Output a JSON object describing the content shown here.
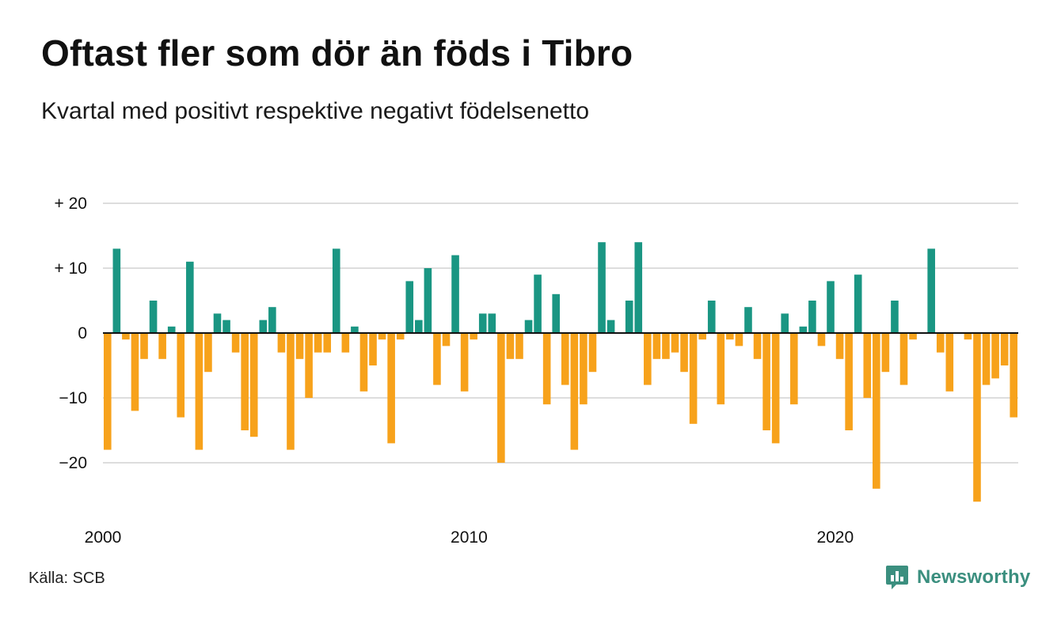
{
  "header": {
    "title": "Oftast fler som dör än föds i Tibro",
    "subtitle": "Kvartal med positivt respektive negativt födelsenetto"
  },
  "footer": {
    "source": "Källa: SCB",
    "brand": "Newsworthy",
    "brand_logo_icon": "newsworthy-logo-icon"
  },
  "colors": {
    "positive": "#1a9683",
    "negative": "#f7a21b",
    "grid": "#dddddd",
    "zero_line": "#111111",
    "brand": "#3b8f7f"
  },
  "chart_data": {
    "type": "bar",
    "title": "Oftast fler som dör än föds i Tibro",
    "subtitle": "Kvartal med positivt respektive negativt födelsenetto",
    "x_start": "2000 Q1",
    "x_ticks": [
      "2000",
      "2010",
      "2020"
    ],
    "y_ticks": [
      {
        "value": 20,
        "label": "+ 20"
      },
      {
        "value": 10,
        "label": "+ 10"
      },
      {
        "value": 0,
        "label": "0"
      },
      {
        "value": -10,
        "label": "−10"
      },
      {
        "value": -20,
        "label": "−20"
      }
    ],
    "ylim": [
      -27,
      20
    ],
    "grid": true,
    "values": [
      -18,
      13,
      -1,
      -12,
      -4,
      5,
      -4,
      1,
      -13,
      11,
      -18,
      -6,
      3,
      2,
      -3,
      -15,
      -16,
      2,
      4,
      -3,
      -18,
      -4,
      -10,
      -3,
      -3,
      13,
      -3,
      1,
      -9,
      -5,
      -1,
      -17,
      -1,
      8,
      2,
      10,
      -8,
      -2,
      12,
      -9,
      -1,
      3,
      3,
      -20,
      -4,
      -4,
      2,
      9,
      -11,
      6,
      -8,
      -18,
      -11,
      -6,
      14,
      2,
      0,
      5,
      14,
      -8,
      -4,
      -4,
      -3,
      -6,
      -14,
      -1,
      5,
      -11,
      -1,
      -2,
      4,
      -4,
      -15,
      -17,
      3,
      -11,
      1,
      5,
      -2,
      8,
      -4,
      -15,
      9,
      -10,
      -24,
      -6,
      5,
      -8,
      -1,
      0,
      13,
      -3,
      -9,
      0,
      -1,
      -26,
      -8,
      -7,
      -5,
      -13
    ]
  }
}
